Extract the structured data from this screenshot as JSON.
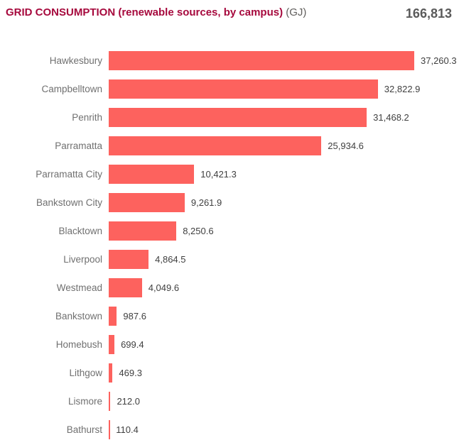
{
  "header": {
    "title": "GRID CONSUMPTION (renewable sources, by campus)",
    "unit": "(GJ)",
    "total": "166,813"
  },
  "colors": {
    "bar": "#FD625E",
    "title": "#A6093D",
    "unit_text": "#605E5C",
    "total_text": "#5A5A5A",
    "category_text": "#707070",
    "value_text": "#3F3F3F",
    "background": "#FFFFFF"
  },
  "chart_data": {
    "type": "bar",
    "orientation": "horizontal",
    "title": "GRID CONSUMPTION (renewable sources, by campus) (GJ)",
    "total": 166813,
    "xlabel": "",
    "ylabel": "",
    "xlim": [
      0,
      37260.3
    ],
    "grid": false,
    "legend": false,
    "categories": [
      "Hawkesbury",
      "Campbelltown",
      "Penrith",
      "Parramatta",
      "Parramatta City",
      "Bankstown City",
      "Blacktown",
      "Liverpool",
      "Westmead",
      "Bankstown",
      "Homebush",
      "Lithgow",
      "Lismore",
      "Bathurst"
    ],
    "values": [
      37260.3,
      32822.9,
      31468.2,
      25934.6,
      10421.3,
      9261.9,
      8250.6,
      4864.5,
      4049.6,
      987.6,
      699.4,
      469.3,
      212.0,
      110.4
    ],
    "value_labels": [
      "37,260.3",
      "32,822.9",
      "31,468.2",
      "25,934.6",
      "10,421.3",
      "9,261.9",
      "8,250.6",
      "4,864.5",
      "4,049.6",
      "987.6",
      "699.4",
      "469.3",
      "212.0",
      "110.4"
    ]
  }
}
